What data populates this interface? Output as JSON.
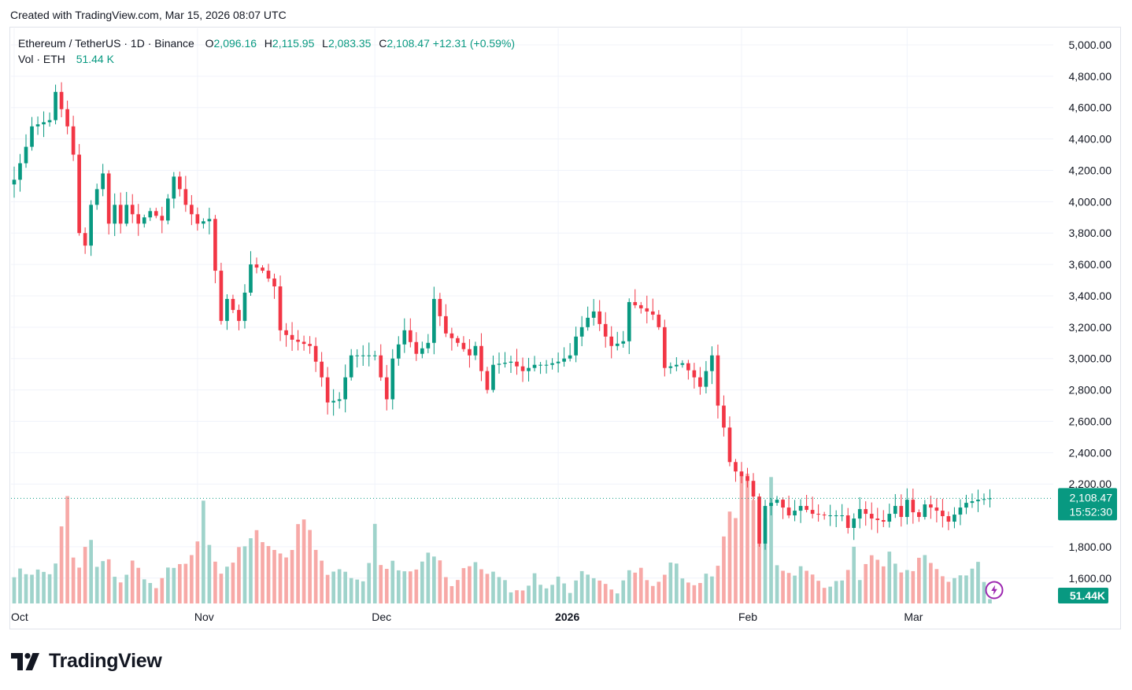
{
  "caption": "Created with TradingView.com, Mar 15, 2026 08:07 UTC",
  "legend": {
    "symbol": "Ethereum / TetherUS · 1D · Binance",
    "o_label": "O",
    "o_value": "2,096.16",
    "h_label": "H",
    "h_value": "2,115.95",
    "l_label": "L",
    "l_value": "2,083.35",
    "c_label": "C",
    "c_value": "2,108.47",
    "change": "+12.31 (+0.59%)",
    "vol_label": "Vol · ETH",
    "vol_value": "51.44 K"
  },
  "price_tag": {
    "price": "2,108.47",
    "countdown": "15:52:30"
  },
  "volume_tag": "51.44K",
  "logo_text": "TradingView",
  "colors": {
    "up": "#089981",
    "down": "#f23645",
    "vol_up": "#9fd3cb",
    "vol_down": "#f7a9a7",
    "grid": "#f0f3fa",
    "axis_text": "#131722"
  },
  "chart_data": {
    "type": "candlestick",
    "y_ticks": [
      "5,000.00",
      "4,800.00",
      "4,600.00",
      "4,400.00",
      "4,200.00",
      "4,000.00",
      "3,800.00",
      "3,600.00",
      "3,400.00",
      "3,200.00",
      "3,000.00",
      "2,800.00",
      "2,600.00",
      "2,400.00",
      "2,200.00",
      "1,800.00",
      "1,600.00"
    ],
    "y_range": [
      1560,
      5080
    ],
    "x_labels": [
      {
        "label": "Oct",
        "day": 0
      },
      {
        "label": "Nov",
        "day": 31
      },
      {
        "label": "Dec",
        "day": 61
      },
      {
        "label": "2026",
        "day": 92,
        "bold": true
      },
      {
        "label": "Feb",
        "day": 123
      },
      {
        "label": "Mar",
        "day": 151
      }
    ],
    "total_days": 166,
    "close_knots": [
      [
        0,
        4140
      ],
      [
        2,
        4350
      ],
      [
        3,
        4480
      ],
      [
        6,
        4520
      ],
      [
        7,
        4700
      ],
      [
        9,
        4480
      ],
      [
        10,
        4300
      ],
      [
        11,
        3800
      ],
      [
        12,
        3720
      ],
      [
        13,
        3980
      ],
      [
        15,
        4180
      ],
      [
        16,
        3860
      ],
      [
        17,
        3980
      ],
      [
        18,
        3860
      ],
      [
        19,
        3980
      ],
      [
        20,
        3920
      ],
      [
        21,
        3860
      ],
      [
        23,
        3940
      ],
      [
        25,
        3880
      ],
      [
        27,
        4160
      ],
      [
        28,
        4080
      ],
      [
        29,
        3980
      ],
      [
        31,
        3860
      ],
      [
        33,
        3890
      ],
      [
        34,
        3560
      ],
      [
        35,
        3240
      ],
      [
        36,
        3380
      ],
      [
        38,
        3240
      ],
      [
        40,
        3600
      ],
      [
        42,
        3560
      ],
      [
        44,
        3460
      ],
      [
        45,
        3180
      ],
      [
        47,
        3120
      ],
      [
        50,
        3080
      ],
      [
        51,
        2980
      ],
      [
        52,
        2880
      ],
      [
        53,
        2720
      ],
      [
        55,
        2740
      ],
      [
        57,
        3020
      ],
      [
        59,
        3020
      ],
      [
        61,
        3020
      ],
      [
        63,
        2740
      ],
      [
        64,
        3000
      ],
      [
        66,
        3180
      ],
      [
        68,
        3030
      ],
      [
        70,
        3100
      ],
      [
        71,
        3380
      ],
      [
        73,
        3160
      ],
      [
        75,
        3100
      ],
      [
        77,
        3020
      ],
      [
        78,
        3080
      ],
      [
        79,
        2920
      ],
      [
        80,
        2800
      ],
      [
        81,
        2960
      ],
      [
        84,
        2980
      ],
      [
        86,
        2920
      ],
      [
        88,
        2960
      ],
      [
        90,
        2960
      ],
      [
        92,
        2980
      ],
      [
        94,
        3020
      ],
      [
        95,
        3140
      ],
      [
        97,
        3260
      ],
      [
        98,
        3300
      ],
      [
        100,
        3140
      ],
      [
        101,
        3080
      ],
      [
        103,
        3110
      ],
      [
        104,
        3360
      ],
      [
        106,
        3320
      ],
      [
        108,
        3280
      ],
      [
        109,
        3200
      ],
      [
        110,
        2940
      ],
      [
        113,
        2970
      ],
      [
        115,
        2880
      ],
      [
        116,
        2820
      ],
      [
        118,
        3020
      ],
      [
        119,
        2700
      ],
      [
        120,
        2560
      ],
      [
        121,
        2340
      ],
      [
        122,
        2280
      ],
      [
        124,
        2220
      ],
      [
        125,
        2120
      ],
      [
        126,
        1820
      ],
      [
        127,
        2060
      ],
      [
        129,
        2100
      ],
      [
        131,
        2000
      ],
      [
        133,
        2060
      ],
      [
        135,
        2010
      ],
      [
        137,
        2000
      ],
      [
        138,
        2000
      ],
      [
        140,
        2000
      ],
      [
        141,
        1920
      ],
      [
        143,
        2040
      ],
      [
        145,
        1980
      ],
      [
        147,
        1960
      ],
      [
        149,
        2060
      ],
      [
        150,
        1990
      ],
      [
        151,
        2100
      ],
      [
        152,
        2020
      ],
      [
        153,
        1990
      ],
      [
        154,
        2070
      ],
      [
        156,
        2030
      ],
      [
        158,
        1960
      ],
      [
        160,
        2050
      ],
      [
        161,
        2080
      ],
      [
        163,
        2100
      ],
      [
        165,
        2108
      ]
    ],
    "volume_knots": [
      [
        0,
        340
      ],
      [
        4,
        350
      ],
      [
        6,
        340
      ],
      [
        7,
        410
      ],
      [
        9,
        1170
      ],
      [
        10,
        480
      ],
      [
        11,
        380
      ],
      [
        13,
        760
      ],
      [
        14,
        420
      ],
      [
        16,
        460
      ],
      [
        18,
        220
      ],
      [
        20,
        420
      ],
      [
        22,
        300
      ],
      [
        24,
        150
      ],
      [
        26,
        380
      ],
      [
        29,
        390
      ],
      [
        31,
        720
      ],
      [
        32,
        1030
      ],
      [
        33,
        680
      ],
      [
        35,
        350
      ],
      [
        37,
        480
      ],
      [
        39,
        620
      ],
      [
        42,
        780
      ],
      [
        44,
        580
      ],
      [
        46,
        520
      ],
      [
        48,
        780
      ],
      [
        49,
        1070
      ],
      [
        51,
        620
      ],
      [
        53,
        280
      ],
      [
        55,
        420
      ],
      [
        57,
        300
      ],
      [
        59,
        250
      ],
      [
        60,
        470
      ],
      [
        61,
        870
      ],
      [
        62,
        410
      ],
      [
        64,
        420
      ],
      [
        66,
        320
      ],
      [
        68,
        360
      ],
      [
        70,
        560
      ],
      [
        72,
        420
      ],
      [
        74,
        180
      ],
      [
        76,
        380
      ],
      [
        78,
        480
      ],
      [
        80,
        300
      ],
      [
        82,
        330
      ],
      [
        84,
        140
      ],
      [
        86,
        160
      ],
      [
        88,
        290
      ],
      [
        90,
        160
      ],
      [
        92,
        300
      ],
      [
        94,
        130
      ],
      [
        96,
        320
      ],
      [
        98,
        250
      ],
      [
        100,
        200
      ],
      [
        102,
        130
      ],
      [
        104,
        420
      ],
      [
        106,
        380
      ],
      [
        108,
        180
      ],
      [
        110,
        300
      ],
      [
        111,
        490
      ],
      [
        113,
        300
      ],
      [
        115,
        180
      ],
      [
        117,
        330
      ],
      [
        119,
        370
      ],
      [
        120,
        710
      ],
      [
        121,
        900
      ],
      [
        122,
        1100
      ],
      [
        123,
        1260
      ],
      [
        124,
        1580
      ],
      [
        125,
        1000
      ],
      [
        126,
        1010
      ],
      [
        127,
        890
      ],
      [
        128,
        1500
      ],
      [
        129,
        460
      ],
      [
        131,
        330
      ],
      [
        133,
        380
      ],
      [
        135,
        300
      ],
      [
        137,
        200
      ],
      [
        139,
        220
      ],
      [
        141,
        350
      ],
      [
        142,
        560
      ],
      [
        143,
        300
      ],
      [
        145,
        480
      ],
      [
        147,
        360
      ],
      [
        148,
        530
      ],
      [
        150,
        370
      ],
      [
        152,
        320
      ],
      [
        153,
        520
      ],
      [
        154,
        580
      ],
      [
        156,
        340
      ],
      [
        158,
        250
      ],
      [
        160,
        290
      ],
      [
        162,
        360
      ],
      [
        163,
        470
      ],
      [
        165,
        51
      ]
    ],
    "volume_max": 1580,
    "last_close": 2108.47
  }
}
